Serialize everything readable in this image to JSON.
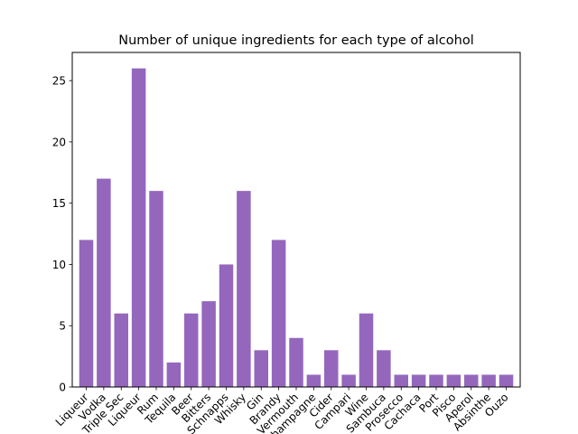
{
  "chart_data": {
    "type": "bar",
    "title": "Number of unique ingredients for each type of alcohol",
    "xlabel": "",
    "ylabel": "",
    "categories": [
      "Liqueur",
      "Vodka",
      "Triple Sec",
      "Liqueur",
      "Rum",
      "Tequila",
      "Beer",
      "Bitters",
      "Schnapps",
      "Whisky",
      "Gin",
      "Brandy",
      "Vermouth",
      "Champagne",
      "Cider",
      "Campari",
      "Wine",
      "Sambuca",
      "Prosecco",
      "Cachaca",
      "Port",
      "Pisco",
      "Aperol",
      "Absinthe",
      "Ouzo"
    ],
    "values": [
      12,
      17,
      6,
      26,
      16,
      2,
      6,
      7,
      10,
      16,
      3,
      12,
      4,
      1,
      3,
      1,
      6,
      3,
      1,
      1,
      1,
      1,
      1,
      1,
      1
    ],
    "ylim": [
      0,
      27.3
    ],
    "yticks": [
      0,
      5,
      10,
      15,
      20,
      25
    ],
    "bar_color": "#9467bd",
    "grid": false,
    "legend": "none",
    "x_tick_rotation": 45
  }
}
